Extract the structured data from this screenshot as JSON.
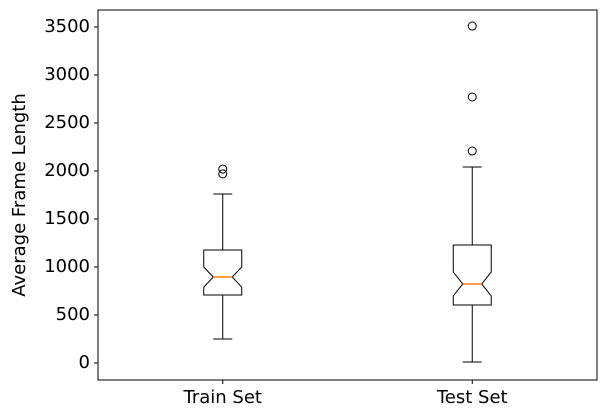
{
  "chart_data": {
    "type": "box",
    "y_label": "Average Frame Length",
    "categories": [
      "Train Set",
      "Test Set"
    ],
    "boxes": [
      {
        "whisker_low": 250,
        "q1": 708,
        "notch_low": 790,
        "median": 896,
        "notch_high": 1000,
        "q3": 1177,
        "whisker_high": 1760,
        "outliers": [
          1970,
          2020
        ]
      },
      {
        "whisker_low": 10,
        "q1": 604,
        "notch_low": 698,
        "median": 823,
        "notch_high": 948,
        "q3": 1229,
        "whisker_high": 2042,
        "outliers": [
          2208,
          2771,
          3510
        ]
      }
    ],
    "box_color": "#000000",
    "median_color": "#ff7f0e",
    "ylim": [
      -177,
      3677
    ],
    "yticks": [
      0,
      500,
      1000,
      1500,
      2000,
      2500,
      3000,
      3500
    ]
  }
}
